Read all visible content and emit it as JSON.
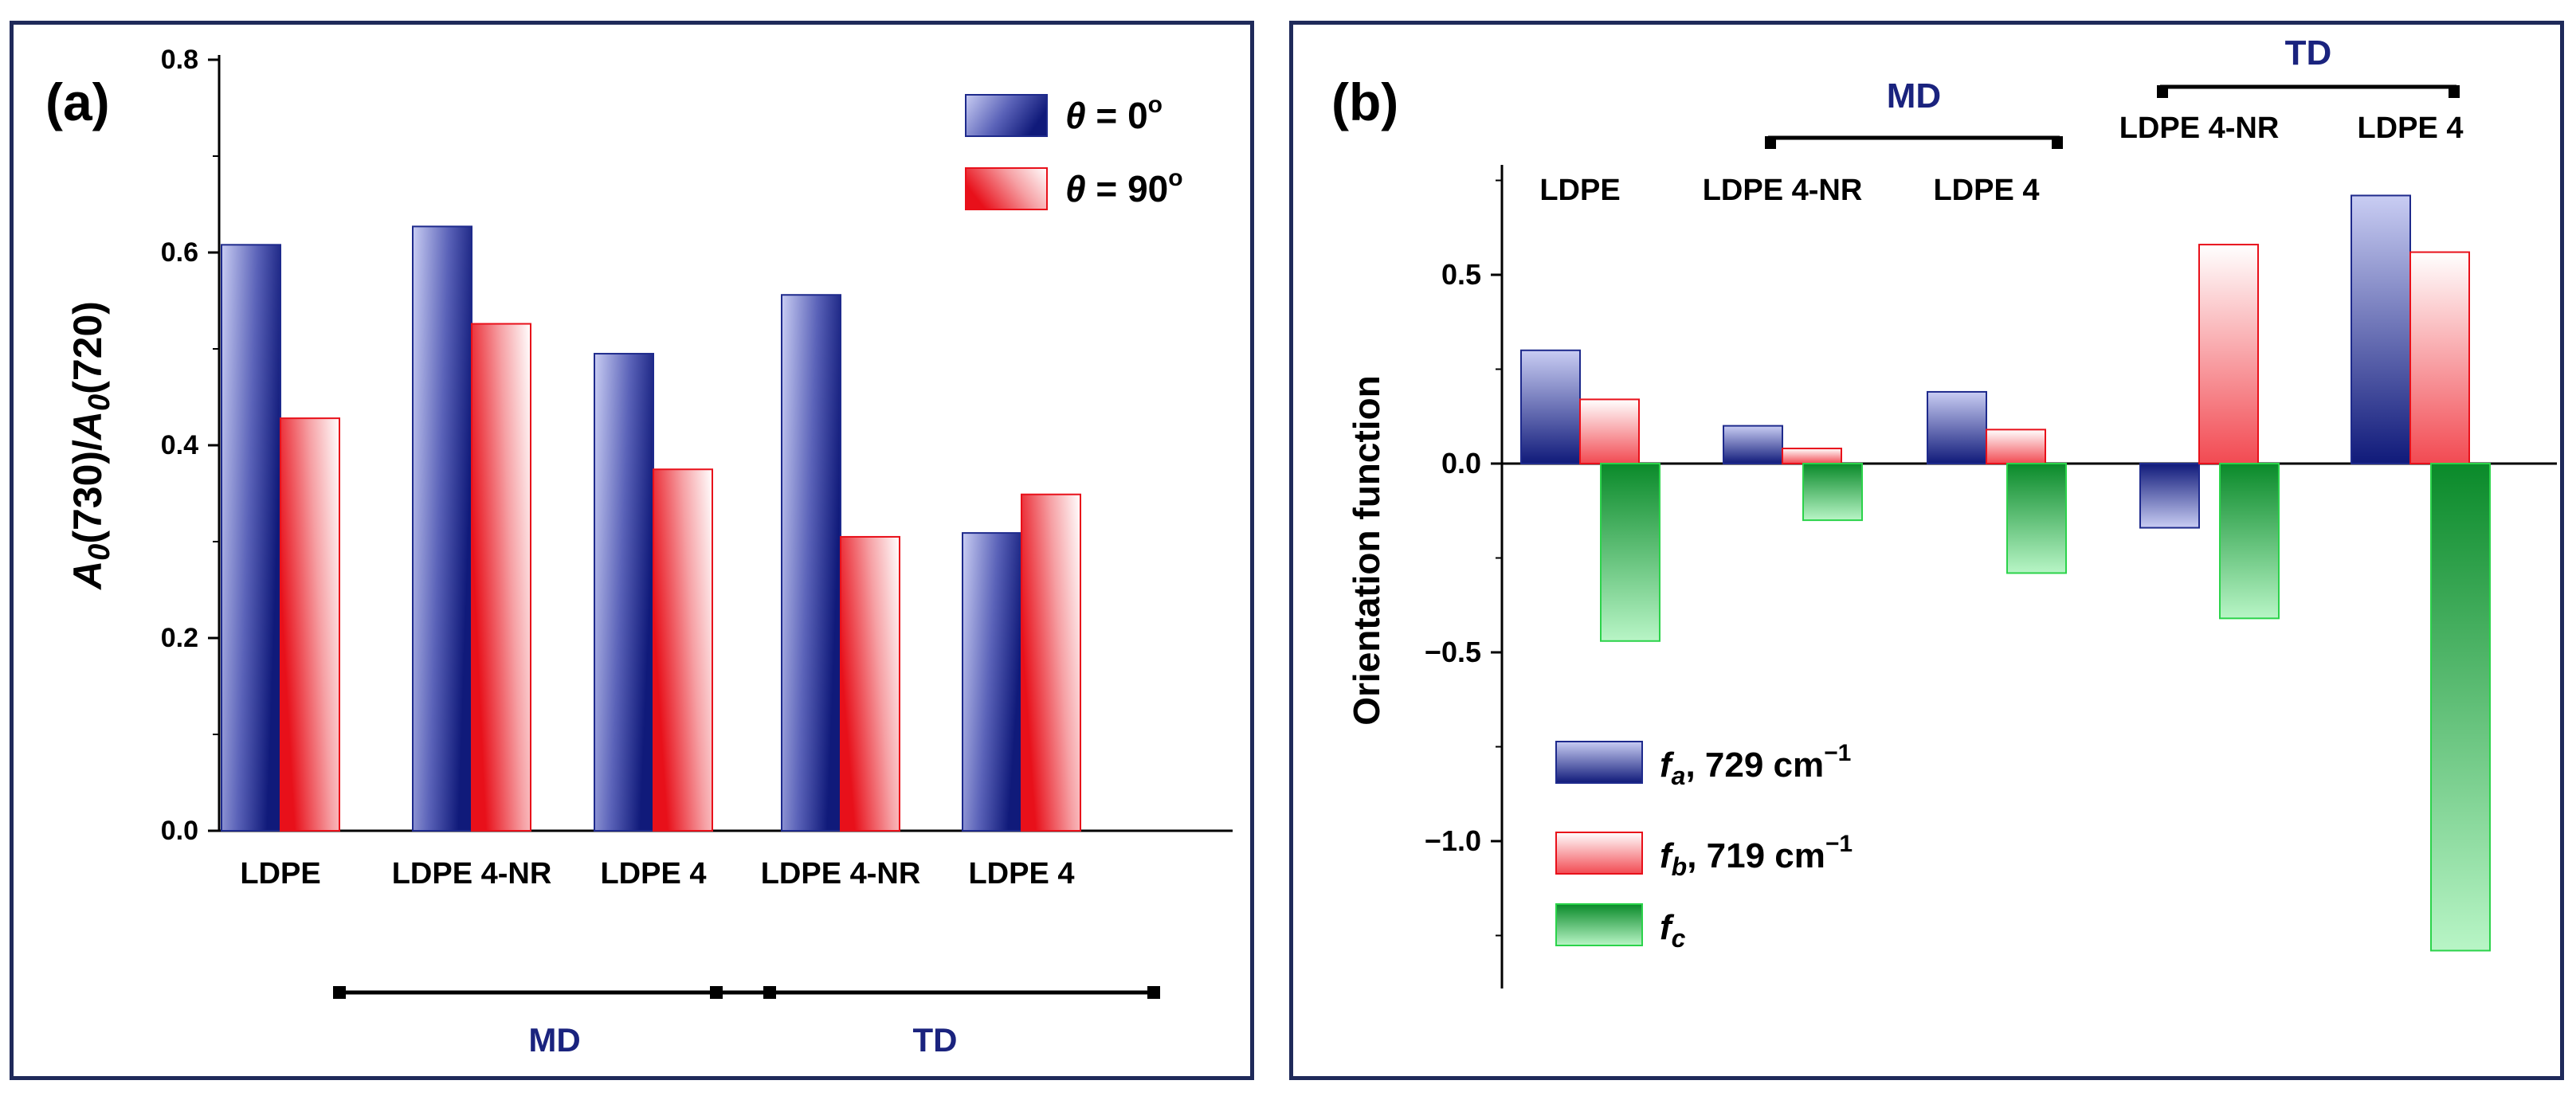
{
  "chart_data": [
    {
      "panel": "(a)",
      "type": "bar",
      "ylabel_parts": [
        "A",
        "0",
        "(730)/",
        "A",
        "0",
        "(720)"
      ],
      "categories": [
        "LDPE",
        "LDPE 4-NR",
        "LDPE 4",
        "LDPE 4-NR",
        "LDPE 4"
      ],
      "groups": [
        {
          "label": "MD",
          "from": 1,
          "to": 2
        },
        {
          "label": "TD",
          "from": 3,
          "to": 4
        }
      ],
      "ylim": [
        0,
        0.8
      ],
      "yticks": [
        "0.0",
        "0.2",
        "0.4",
        "0.6",
        "0.8"
      ],
      "series": [
        {
          "name": "θ = 0°",
          "symbol": "θ",
          "rest": " = 0",
          "sup": "o",
          "color": "#1e2a8c",
          "values": [
            0.608,
            0.627,
            0.495,
            0.556,
            0.309
          ]
        },
        {
          "name": "θ = 90°",
          "symbol": "θ",
          "rest": " = 90",
          "sup": "o",
          "color": "#e8101a",
          "values": [
            0.428,
            0.526,
            0.375,
            0.305,
            0.349
          ]
        }
      ],
      "legend_position": "top-right"
    },
    {
      "panel": "(b)",
      "type": "bar",
      "ylabel": "Orientation function",
      "categories": [
        "LDPE",
        "LDPE 4-NR",
        "LDPE 4",
        "LDPE 4-NR",
        "LDPE 4"
      ],
      "groups": [
        {
          "label": "MD",
          "from": 1,
          "to": 2
        },
        {
          "label": "TD",
          "from": 3,
          "to": 4
        }
      ],
      "ylim": [
        -1.35,
        0.8
      ],
      "yticks": [
        "−1.0",
        "−0.5",
        "0.0",
        "0.5"
      ],
      "ytick_values": [
        -1.0,
        -0.5,
        0.0,
        0.5
      ],
      "series": [
        {
          "name": "fa, 729 cm−1",
          "symbol": "f",
          "sub": "a",
          "rest": ", 729 cm",
          "sup": "−1",
          "color": "#1e2a8c",
          "values": [
            0.3,
            0.1,
            0.19,
            -0.17,
            0.71
          ]
        },
        {
          "name": "fb, 719 cm−1",
          "symbol": "f",
          "sub": "b",
          "rest": ", 719 cm",
          "sup": "−1",
          "color": "#e8101a",
          "values": [
            0.17,
            0.04,
            0.09,
            0.58,
            0.56
          ]
        },
        {
          "name": "fc",
          "symbol": "f",
          "sub": "c",
          "rest": "",
          "sup": "",
          "color": "#0a8a2a",
          "values": [
            -0.47,
            -0.15,
            -0.29,
            -0.41,
            -1.29
          ]
        }
      ],
      "legend_position": "bottom-left"
    }
  ]
}
